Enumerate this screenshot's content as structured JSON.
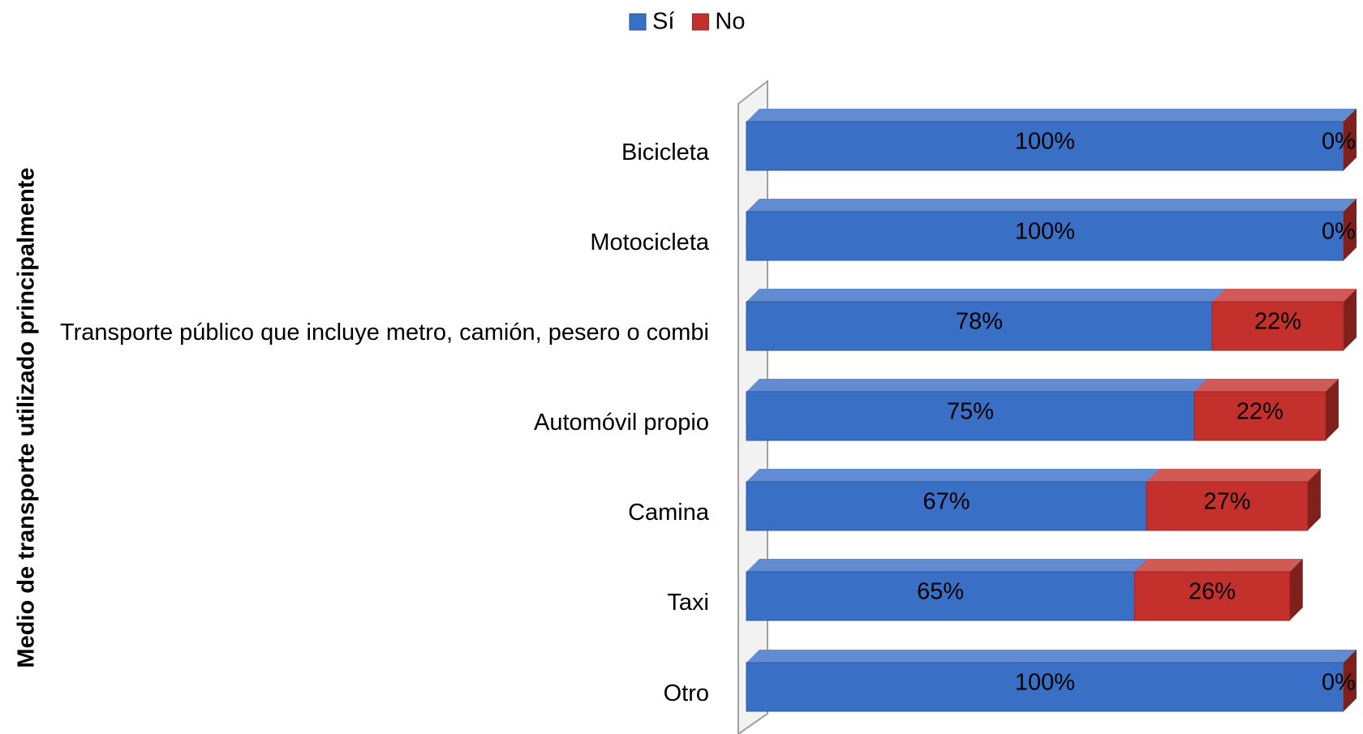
{
  "chart_data": {
    "type": "stacked-bar-horizontal-3d",
    "y_axis_label": "Medio de transporte utilizado principalmente",
    "categories": [
      "Bicicleta",
      "Motocicleta",
      "Transporte público que incluye metro, camión, pesero o combi",
      "Automóvil propio",
      "Camina",
      "Taxi",
      "Otro"
    ],
    "series": [
      {
        "name": "Sí",
        "color": "#3a6fc6",
        "values": [
          100,
          100,
          78,
          75,
          67,
          65,
          100
        ],
        "value_labels": [
          "100%",
          "100%",
          "78%",
          "75%",
          "67%",
          "65%",
          "100%"
        ]
      },
      {
        "name": "No",
        "color": "#c4312c",
        "values": [
          0,
          0,
          22,
          22,
          27,
          26,
          0
        ],
        "value_labels": [
          "0%",
          "0%",
          "22%",
          "22%",
          "27%",
          "26%",
          "0%"
        ]
      }
    ],
    "xlim": [
      0,
      100
    ],
    "legend": "top"
  }
}
